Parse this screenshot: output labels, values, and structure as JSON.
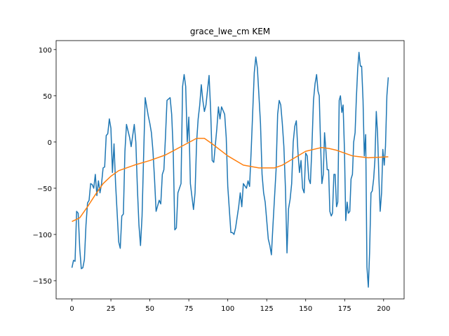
{
  "chart_data": {
    "type": "line",
    "title": "grace_lwe_cm KEM",
    "x": [
      0,
      1,
      2,
      3,
      4,
      5,
      6,
      7,
      8,
      9,
      10,
      11,
      12,
      13,
      14,
      15,
      16,
      17,
      18,
      19,
      20,
      21,
      22,
      23,
      24,
      25,
      26,
      27,
      28,
      30,
      31,
      32,
      33,
      34,
      35,
      36,
      37,
      38,
      40,
      41,
      42,
      43,
      44,
      45,
      46,
      47,
      49,
      50,
      51,
      52,
      53,
      54,
      56,
      57,
      58,
      59,
      60,
      61,
      63,
      64,
      65,
      66,
      67,
      68,
      70,
      71,
      72,
      73,
      74,
      75,
      76,
      78,
      79,
      80,
      81,
      82,
      83,
      84,
      85,
      86,
      88,
      89,
      90,
      91,
      93,
      94,
      95,
      96,
      98,
      99,
      100,
      102,
      103,
      104,
      105,
      107,
      108,
      109,
      110,
      112,
      113,
      114,
      115,
      117,
      118,
      119,
      121,
      122,
      123,
      124,
      126,
      127,
      128,
      129,
      131,
      132,
      133,
      134,
      135,
      136,
      137,
      138,
      139,
      140,
      141,
      142,
      143,
      144,
      145,
      146,
      147,
      148,
      149,
      150,
      151,
      152,
      153,
      154,
      155,
      156,
      157,
      157.9,
      158.7,
      159.6,
      160.4,
      161.3,
      162.1,
      163,
      163.8,
      164.7,
      165.5,
      166.4,
      167.2,
      168.1,
      168.9,
      169.8,
      170.6,
      171.5,
      172.3,
      173.2,
      174,
      174.9,
      175.7,
      176.6,
      177.4,
      178.3,
      179.1,
      180,
      180.8,
      181.7,
      182.5,
      183.4,
      184.2,
      185.1,
      185.9,
      186.8,
      187.6,
      188.5,
      189.3,
      190.2,
      191,
      191.9,
      192.7,
      193.6,
      194.4,
      195.3,
      196.1,
      197,
      197.8,
      198.7,
      199.5,
      200.4,
      201.2,
      202.1,
      203
    ],
    "series": [
      {
        "color": "#1f77b4",
        "values": [
          -136,
          -128,
          -129,
          -75,
          -77,
          -115,
          -137,
          -136,
          -127,
          -90,
          -66,
          -63,
          -45,
          -46,
          -50,
          -35,
          -58,
          -42,
          -55,
          -45,
          -28,
          -27,
          7,
          9,
          25,
          15,
          -33,
          -2,
          -45,
          -108,
          -115,
          -80,
          -78,
          -10,
          19,
          12,
          5,
          -5,
          19,
          0,
          -50,
          -90,
          -112,
          -80,
          -15,
          48,
          28,
          20,
          10,
          -10,
          -40,
          -75,
          -63,
          -67,
          -35,
          -30,
          5,
          45,
          48,
          30,
          -10,
          -95,
          -93,
          -55,
          -45,
          60,
          73,
          60,
          0,
          27,
          -45,
          -73,
          -55,
          0,
          25,
          40,
          62,
          45,
          33,
          40,
          72,
          35,
          -20,
          -22,
          15,
          38,
          25,
          38,
          30,
          5,
          -48,
          -98,
          -98,
          -100,
          -93,
          -70,
          -55,
          -70,
          -45,
          -50,
          -42,
          -48,
          -10,
          75,
          92,
          80,
          20,
          -35,
          -55,
          -65,
          -105,
          -112,
          -122,
          -90,
          -30,
          30,
          45,
          40,
          20,
          -5,
          -50,
          -120,
          -72,
          -62,
          -45,
          0,
          17,
          23,
          -10,
          -33,
          -20,
          -50,
          -55,
          -12,
          -15,
          -40,
          -45,
          -5,
          45,
          63,
          73,
          55,
          50,
          -5,
          -45,
          -35,
          10,
          -10,
          -30,
          -30,
          -75,
          -80,
          -77,
          -35,
          -35,
          -70,
          -65,
          45,
          50,
          32,
          40,
          -10,
          -85,
          -65,
          -77,
          -75,
          -40,
          -35,
          0,
          10,
          47,
          80,
          97,
          82,
          82,
          45,
          -15,
          8,
          -135,
          -157,
          -120,
          -55,
          -53,
          -40,
          -20,
          33,
          10,
          -40,
          -75,
          -55,
          -8,
          -25,
          -5,
          50,
          70
        ]
      },
      {
        "color": "#ff7f0e",
        "x": [
          0,
          5,
          10,
          15,
          20,
          25,
          30,
          40,
          50,
          60,
          70,
          80,
          85,
          90,
          100,
          110,
          120,
          130,
          135,
          140,
          150,
          160,
          165,
          170,
          180,
          190,
          203
        ],
        "values": [
          -86,
          -82,
          -70,
          -57,
          -45,
          -37,
          -31,
          -25,
          -20,
          -14,
          -5,
          4,
          4,
          -2,
          -15,
          -25,
          -28,
          -28,
          -25,
          -20,
          -10,
          -6,
          -7,
          -9,
          -15,
          -17,
          -16
        ]
      }
    ],
    "xlim": [
      -10.15,
      213.15
    ],
    "xticks": [
      0,
      25,
      50,
      75,
      100,
      125,
      150,
      175,
      200
    ],
    "ylim": [
      -169.7,
      109.7
    ],
    "yticks": [
      {
        "value": -150,
        "label": "−150"
      },
      {
        "value": -100,
        "label": "−100"
      },
      {
        "value": -50,
        "label": "−50"
      },
      0,
      50,
      100
    ]
  }
}
